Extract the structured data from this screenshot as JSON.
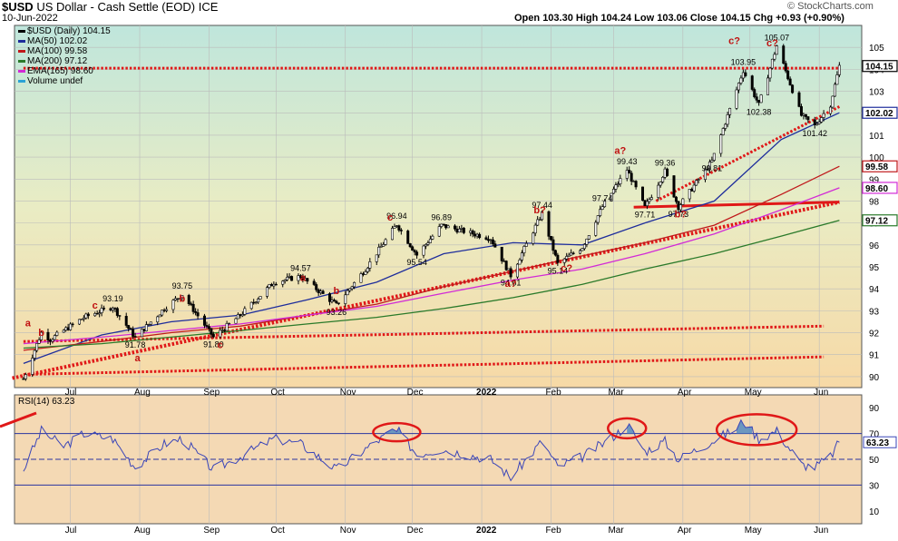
{
  "header": {
    "ticker": "$USD",
    "name": "US Dollar - Cash Settle (EOD)",
    "exchange": "ICE",
    "date": "10-Jun-2022",
    "open_label": "Open",
    "open": "103.30",
    "high_label": "High",
    "high": "104.24",
    "low_label": "Low",
    "low": "103.06",
    "close_label": "Close",
    "close": "104.15",
    "chg_label": "Chg",
    "chg": "+0.93 (+0.90%)",
    "watermark": "© StockCharts.com"
  },
  "legend": [
    {
      "text": "$USD (Daily) 104.15",
      "color": "#000000"
    },
    {
      "text": "MA(50) 102.02",
      "color": "#1e2d9c"
    },
    {
      "text": "MA(100) 99.58",
      "color": "#c0191b"
    },
    {
      "text": "MA(200) 97.12",
      "color": "#2a7a2a"
    },
    {
      "text": "EMA(165) 98.60",
      "color": "#d22ad6"
    },
    {
      "text": "Volume undef",
      "color": "#2aa2d6"
    }
  ],
  "colors": {
    "grid": "#b9b9b9",
    "resistance": "#e01818",
    "support": "#e01818",
    "rsi_line": "#3a45b8",
    "rsi_fill": "#4a86c2",
    "circle": "#e01818",
    "price_bg_top": "#bfe6dc",
    "price_bg_bottom": "#f7d9a6",
    "rsi_bg": "#f4d9b4"
  },
  "rsi_label": "RSI(14) 63.23",
  "chart_data": {
    "type": "ohlc",
    "title": "$USD US Dollar - Cash Settle (EOD) ICE",
    "x_axis": {
      "labels": [
        "Jul",
        "Aug",
        "Sep",
        "Oct",
        "Nov",
        "Dec",
        "2022",
        "Feb",
        "Mar",
        "Apr",
        "May",
        "Jun"
      ]
    },
    "y_axis": {
      "range": [
        89.5,
        106
      ],
      "ticks": [
        90,
        91,
        92,
        93,
        94,
        95,
        96,
        97,
        98,
        99,
        100,
        101,
        102,
        103,
        104,
        105
      ],
      "position": "right"
    },
    "price_path": [
      {
        "date": "2021-06-10",
        "value": 89.9
      },
      {
        "date": "2021-06-18",
        "value": 92.0
      },
      {
        "date": "2021-06-22",
        "value": 91.7
      },
      {
        "date": "2021-07-07",
        "value": 92.7
      },
      {
        "date": "2021-07-20",
        "value": 93.19
      },
      {
        "date": "2021-07-30",
        "value": 91.78
      },
      {
        "date": "2021-08-12",
        "value": 93.1
      },
      {
        "date": "2021-08-20",
        "value": 93.75
      },
      {
        "date": "2021-09-03",
        "value": 91.8
      },
      {
        "date": "2021-09-15",
        "value": 92.8
      },
      {
        "date": "2021-09-30",
        "value": 94.3
      },
      {
        "date": "2021-10-12",
        "value": 94.57
      },
      {
        "date": "2021-10-28",
        "value": 93.26
      },
      {
        "date": "2021-11-10",
        "value": 94.9
      },
      {
        "date": "2021-11-24",
        "value": 96.94
      },
      {
        "date": "2021-12-03",
        "value": 95.54
      },
      {
        "date": "2021-12-14",
        "value": 96.89
      },
      {
        "date": "2022-01-05",
        "value": 96.3
      },
      {
        "date": "2022-01-14",
        "value": 94.61
      },
      {
        "date": "2022-01-28",
        "value": 97.44
      },
      {
        "date": "2022-02-04",
        "value": 95.14
      },
      {
        "date": "2022-02-15",
        "value": 95.9
      },
      {
        "date": "2022-02-24",
        "value": 97.74
      },
      {
        "date": "2022-03-07",
        "value": 99.43
      },
      {
        "date": "2022-03-15",
        "value": 97.71
      },
      {
        "date": "2022-03-24",
        "value": 99.36
      },
      {
        "date": "2022-03-30",
        "value": 97.73
      },
      {
        "date": "2022-04-14",
        "value": 99.81
      },
      {
        "date": "2022-04-28",
        "value": 103.95
      },
      {
        "date": "2022-05-05",
        "value": 102.38
      },
      {
        "date": "2022-05-13",
        "value": 105.07
      },
      {
        "date": "2022-05-24",
        "value": 101.9
      },
      {
        "date": "2022-05-30",
        "value": 101.42
      },
      {
        "date": "2022-06-06",
        "value": 102.4
      },
      {
        "date": "2022-06-10",
        "value": 104.15
      }
    ],
    "moving_averages": [
      {
        "name": "MA(50)",
        "last": 102.02,
        "color": "#1e2d9c",
        "points": [
          [
            "2021-06-10",
            90.6
          ],
          [
            "2021-07-15",
            91.9
          ],
          [
            "2021-08-15",
            92.5
          ],
          [
            "2021-09-15",
            92.8
          ],
          [
            "2021-10-15",
            93.5
          ],
          [
            "2021-11-15",
            94.3
          ],
          [
            "2021-12-15",
            95.6
          ],
          [
            "2022-01-15",
            96.1
          ],
          [
            "2022-02-15",
            96.0
          ],
          [
            "2022-03-15",
            97.0
          ],
          [
            "2022-04-15",
            98.0
          ],
          [
            "2022-05-15",
            100.8
          ],
          [
            "2022-06-10",
            102.02
          ]
        ]
      },
      {
        "name": "MA(100)",
        "last": 99.58,
        "color": "#c0191b",
        "points": [
          [
            "2021-06-10",
            91.2
          ],
          [
            "2021-07-15",
            91.6
          ],
          [
            "2021-08-15",
            92.0
          ],
          [
            "2021-09-15",
            92.3
          ],
          [
            "2021-10-15",
            92.8
          ],
          [
            "2021-11-15",
            93.3
          ],
          [
            "2021-12-15",
            94.1
          ],
          [
            "2022-01-15",
            94.8
          ],
          [
            "2022-02-15",
            95.5
          ],
          [
            "2022-03-15",
            96.1
          ],
          [
            "2022-04-15",
            96.9
          ],
          [
            "2022-05-15",
            98.3
          ],
          [
            "2022-06-10",
            99.58
          ]
        ]
      },
      {
        "name": "EMA(165)",
        "last": 98.6,
        "color": "#d22ad6",
        "points": [
          [
            "2021-06-10",
            91.5
          ],
          [
            "2021-07-15",
            91.8
          ],
          [
            "2021-08-15",
            92.1
          ],
          [
            "2021-09-15",
            92.4
          ],
          [
            "2021-10-15",
            92.8
          ],
          [
            "2021-11-15",
            93.2
          ],
          [
            "2021-12-15",
            93.8
          ],
          [
            "2022-01-15",
            94.4
          ],
          [
            "2022-02-15",
            94.9
          ],
          [
            "2022-03-15",
            95.6
          ],
          [
            "2022-04-15",
            96.5
          ],
          [
            "2022-05-15",
            97.6
          ],
          [
            "2022-06-10",
            98.6
          ]
        ]
      },
      {
        "name": "MA(200)",
        "last": 97.12,
        "color": "#2a7a2a",
        "points": [
          [
            "2021-06-10",
            91.3
          ],
          [
            "2021-07-15",
            91.5
          ],
          [
            "2021-08-15",
            91.8
          ],
          [
            "2021-09-15",
            92.1
          ],
          [
            "2021-10-15",
            92.4
          ],
          [
            "2021-11-15",
            92.7
          ],
          [
            "2021-12-15",
            93.1
          ],
          [
            "2022-01-15",
            93.6
          ],
          [
            "2022-02-15",
            94.2
          ],
          [
            "2022-03-15",
            94.9
          ],
          [
            "2022-04-15",
            95.6
          ],
          [
            "2022-05-15",
            96.4
          ],
          [
            "2022-06-10",
            97.12
          ]
        ]
      }
    ],
    "axis_value_tags": [
      {
        "value": 104.15,
        "text": "104.15",
        "bg": "#ffffff",
        "border": "#000000"
      },
      {
        "value": 102.02,
        "text": "102.02",
        "bg": "#ffffff",
        "border": "#1e2d9c"
      },
      {
        "value": 99.58,
        "text": "99.58",
        "bg": "#ffffff",
        "border": "#c0191b"
      },
      {
        "value": 98.6,
        "text": "98.60",
        "bg": "#ffffff",
        "border": "#d22ad6"
      },
      {
        "value": 97.12,
        "text": "97.12",
        "bg": "#ffffff",
        "border": "#2a7a2a"
      }
    ],
    "price_labels": [
      {
        "date": "2021-07-20",
        "value": 93.19,
        "text": "93.19",
        "pos": "above"
      },
      {
        "date": "2021-07-30",
        "value": 91.78,
        "text": "91.78",
        "pos": "below"
      },
      {
        "date": "2021-08-20",
        "value": 93.75,
        "text": "93.75",
        "pos": "above"
      },
      {
        "date": "2021-09-03",
        "value": 91.8,
        "text": "91.80",
        "pos": "below"
      },
      {
        "date": "2021-10-12",
        "value": 94.57,
        "text": "94.57",
        "pos": "above"
      },
      {
        "date": "2021-10-28",
        "value": 93.26,
        "text": "93.26",
        "pos": "below"
      },
      {
        "date": "2021-11-24",
        "value": 96.94,
        "text": "96.94",
        "pos": "above"
      },
      {
        "date": "2021-12-03",
        "value": 95.54,
        "text": "95.54",
        "pos": "below"
      },
      {
        "date": "2021-12-14",
        "value": 96.89,
        "text": "96.89",
        "pos": "above"
      },
      {
        "date": "2022-01-14",
        "value": 94.61,
        "text": "94.61",
        "pos": "below"
      },
      {
        "date": "2022-01-28",
        "value": 97.44,
        "text": "97.44",
        "pos": "above"
      },
      {
        "date": "2022-02-04",
        "value": 95.14,
        "text": "95.14",
        "pos": "below"
      },
      {
        "date": "2022-02-24",
        "value": 97.74,
        "text": "97.74",
        "pos": "above"
      },
      {
        "date": "2022-03-07",
        "value": 99.43,
        "text": "99.43",
        "pos": "above"
      },
      {
        "date": "2022-03-15",
        "value": 97.71,
        "text": "97.71",
        "pos": "below"
      },
      {
        "date": "2022-03-24",
        "value": 99.36,
        "text": "99.36",
        "pos": "above"
      },
      {
        "date": "2022-03-30",
        "value": 97.73,
        "text": "97.73",
        "pos": "below"
      },
      {
        "date": "2022-04-14",
        "value": 99.81,
        "text": "99.81",
        "pos": "below"
      },
      {
        "date": "2022-04-28",
        "value": 103.95,
        "text": "103.95",
        "pos": "above"
      },
      {
        "date": "2022-05-05",
        "value": 102.38,
        "text": "102.38",
        "pos": "below"
      },
      {
        "date": "2022-05-13",
        "value": 105.07,
        "text": "105.07",
        "pos": "above"
      },
      {
        "date": "2022-05-30",
        "value": 101.42,
        "text": "101.42",
        "pos": "below"
      }
    ],
    "wave_labels": [
      {
        "date": "2021-06-12",
        "value": 92.3,
        "text": "a"
      },
      {
        "date": "2021-06-18",
        "value": 91.85,
        "text": "b"
      },
      {
        "date": "2021-07-12",
        "value": 93.1,
        "text": "c"
      },
      {
        "date": "2021-07-31",
        "value": 90.7,
        "text": "a"
      },
      {
        "date": "2021-08-20",
        "value": 93.4,
        "text": "b"
      },
      {
        "date": "2021-09-06",
        "value": 91.3,
        "text": "c"
      },
      {
        "date": "2021-10-13",
        "value": 94.35,
        "text": "a"
      },
      {
        "date": "2021-10-28",
        "value": 93.75,
        "text": "b"
      },
      {
        "date": "2021-11-21",
        "value": 97.1,
        "text": "c"
      },
      {
        "date": "2022-01-14",
        "value": 94.1,
        "text": "a?"
      },
      {
        "date": "2022-01-27",
        "value": 97.45,
        "text": "b?"
      },
      {
        "date": "2022-02-08",
        "value": 94.8,
        "text": "c?"
      },
      {
        "date": "2022-03-04",
        "value": 100.15,
        "text": "a?"
      },
      {
        "date": "2022-03-31",
        "value": 97.25,
        "text": "b?"
      },
      {
        "date": "2022-04-24",
        "value": 105.15,
        "text": "c?"
      },
      {
        "date": "2022-05-11",
        "value": 105.05,
        "text": "c?"
      }
    ],
    "annotation_lines": [
      {
        "name": "resistance-104",
        "x1": "2021-06-10",
        "y1": 104.05,
        "x2": "2022-06-10",
        "y2": 104.05,
        "style": "dotted",
        "width": 3
      },
      {
        "name": "support-97.7",
        "x1": "2022-03-10",
        "y1": 97.72,
        "x2": "2022-06-10",
        "y2": 97.95,
        "style": "solid",
        "width": 3
      },
      {
        "name": "uptrend-main",
        "x1": "2021-06-05",
        "y1": 89.93,
        "x2": "2022-06-10",
        "y2": 97.95,
        "style": "dotted",
        "width": 4
      },
      {
        "name": "uptrend-steep",
        "x1": "2022-03-20",
        "y1": 98.0,
        "x2": "2022-06-10",
        "y2": 102.3,
        "style": "dotted",
        "width": 3
      },
      {
        "name": "channel-upper",
        "x1": "2021-06-10",
        "y1": 91.6,
        "x2": "2022-06-03",
        "y2": 92.3,
        "style": "dotted",
        "width": 3
      },
      {
        "name": "channel-lower",
        "x1": "2021-06-10",
        "y1": 90.1,
        "x2": "2022-06-03",
        "y2": 90.9,
        "style": "dotted",
        "width": 3
      }
    ],
    "rsi": {
      "name": "RSI(14)",
      "last": 63.23,
      "range": [
        0,
        100
      ],
      "ticks": [
        10,
        30,
        50,
        70,
        90
      ],
      "overbought": 70,
      "oversold": 30,
      "midline": 50,
      "path": [
        [
          "2021-06-10",
          42
        ],
        [
          "2021-06-18",
          72
        ],
        [
          "2021-06-28",
          60
        ],
        [
          "2021-07-07",
          70
        ],
        [
          "2021-07-20",
          66
        ],
        [
          "2021-07-30",
          44
        ],
        [
          "2021-08-12",
          62
        ],
        [
          "2021-08-20",
          66
        ],
        [
          "2021-09-03",
          42
        ],
        [
          "2021-09-15",
          52
        ],
        [
          "2021-09-30",
          66
        ],
        [
          "2021-10-12",
          62
        ],
        [
          "2021-10-28",
          42
        ],
        [
          "2021-11-10",
          58
        ],
        [
          "2021-11-22",
          72
        ],
        [
          "2021-11-25",
          71
        ],
        [
          "2021-12-03",
          54
        ],
        [
          "2021-12-14",
          58
        ],
        [
          "2022-01-05",
          50
        ],
        [
          "2022-01-14",
          36
        ],
        [
          "2022-01-28",
          64
        ],
        [
          "2022-02-04",
          44
        ],
        [
          "2022-02-15",
          52
        ],
        [
          "2022-02-24",
          62
        ],
        [
          "2022-03-04",
          72
        ],
        [
          "2022-03-07",
          78
        ],
        [
          "2022-03-15",
          56
        ],
        [
          "2022-03-24",
          64
        ],
        [
          "2022-03-30",
          50
        ],
        [
          "2022-04-14",
          64
        ],
        [
          "2022-04-25",
          74
        ],
        [
          "2022-04-28",
          80
        ],
        [
          "2022-05-05",
          66
        ],
        [
          "2022-05-13",
          72
        ],
        [
          "2022-05-24",
          46
        ],
        [
          "2022-05-30",
          44
        ],
        [
          "2022-06-06",
          52
        ],
        [
          "2022-06-10",
          63.23
        ]
      ],
      "circles": [
        {
          "date": "2021-11-24",
          "value": 71
        },
        {
          "date": "2022-03-07",
          "value": 74
        },
        {
          "date": "2022-05-04",
          "value": 73
        }
      ]
    }
  }
}
